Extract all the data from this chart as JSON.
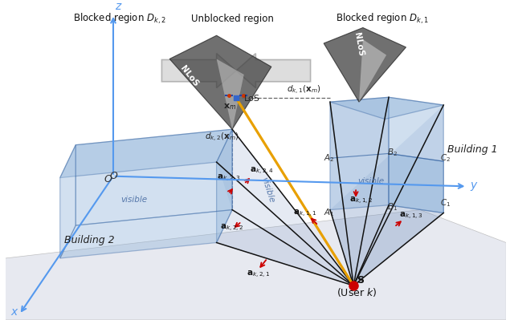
{
  "labels": {
    "blocked_region_1": "Blocked region $D_{k,1}$",
    "blocked_region_2": "Blocked region $D_{k,2}$",
    "unblocked_region": "Unblocked region",
    "building1": "Building 1",
    "building2": "Building 2",
    "user_k": "(User $k$)",
    "S": "S",
    "O": "$O$",
    "LoS": "LoS",
    "NLoS_1": "NLoS",
    "NLoS_2": "NLoS",
    "xm": "$\\mathbf{x}_m$",
    "dk1": "$d_{k,1}(\\mathbf{x}_m)$",
    "dk2": "$d_{k,2}(\\mathbf{x}_m)$",
    "ak21": "$\\mathbf{a}_{k,2,1}$",
    "ak22": "$\\mathbf{a}_{k,2,2}$",
    "ak23": "$\\mathbf{a}_{k,2,3}$",
    "ak24": "$\\mathbf{a}_{k,2,4}$",
    "ak11": "$\\mathbf{a}_{k,1,1}$",
    "ak12": "$\\mathbf{a}_{k,1,2}$",
    "ak13": "$\\mathbf{a}_{k,1,3}$",
    "visible1": "visible",
    "visible2": "visible",
    "visible3": "visible",
    "A1": "$A_1$",
    "A2": "$A_2$",
    "B1": "$B_1$",
    "B2": "$B_2$",
    "C1": "$C_1$",
    "C2": "$C_2$",
    "z_axis": "$z$",
    "y_axis": "$y$",
    "x_axis": "$x$"
  },
  "colors": {
    "building_blue": "#8ab0d8",
    "building_edge": "#3060a0",
    "cone_dark": "#404040",
    "cone_gray": "#909090",
    "axis_blue": "#5599ee",
    "ground": "#dde0ea",
    "ray_black": "#111111",
    "orange": "#e8a000",
    "red": "#cc0000",
    "dashed": "#666666",
    "white_arrow": "#c8c8c8",
    "white_arrow_edge": "#999999"
  }
}
